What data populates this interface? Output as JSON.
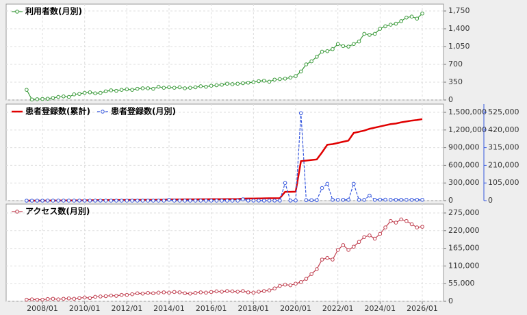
{
  "chart_data": [
    {
      "type": "line",
      "legend": "upper left",
      "grid": true,
      "series": [
        {
          "name": "利用者数(月別)",
          "color": "#3a9a3a",
          "marker": "circle",
          "dash": false,
          "values": [
            200,
            10,
            15,
            20,
            25,
            40,
            60,
            70,
            60,
            110,
            120,
            140,
            150,
            130,
            140,
            170,
            190,
            180,
            200,
            210,
            200,
            220,
            230,
            230,
            220,
            260,
            240,
            250,
            240,
            250,
            230,
            240,
            250,
            270,
            260,
            280,
            290,
            300,
            320,
            310,
            320,
            330,
            340,
            350,
            370,
            380,
            360,
            400,
            410,
            420,
            440,
            470,
            560,
            700,
            760,
            850,
            950,
            960,
            1000,
            1100,
            1060,
            1050,
            1100,
            1150,
            1300,
            1280,
            1300,
            1400,
            1450,
            1480,
            1500,
            1550,
            1620,
            1640,
            1600,
            1700
          ]
        }
      ],
      "ylim": [
        0,
        1885
      ],
      "yticks": [
        0,
        350,
        700,
        {
          "value": 1050,
          "label": "1,050"
        },
        {
          "value": 1400,
          "label": "1,400"
        },
        {
          "value": 1750,
          "label": "1,750"
        }
      ],
      "tick_color": "#3a9a3a"
    },
    {
      "type": "line",
      "legend": "upper left",
      "grid": true,
      "series": [
        {
          "name": "患者登録数(累計)",
          "color": "#e00000",
          "marker": "none",
          "dash": false,
          "values": [
            0,
            0,
            0,
            0,
            1000,
            1500,
            2000,
            2500,
            3000,
            3500,
            4000,
            5000,
            6000,
            7000,
            8000,
            9000,
            9500,
            10000,
            10500,
            11000,
            11500,
            12000,
            12500,
            13000,
            13500,
            14000,
            14500,
            20000,
            20500,
            21000,
            21500,
            22000,
            22500,
            23000,
            23500,
            24000,
            24500,
            25000,
            25500,
            26000,
            26500,
            35000,
            36000,
            37000,
            38000,
            39000,
            40000,
            41000,
            42000,
            150000,
            150000,
            152000,
            670000,
            680000,
            690000,
            700000,
            820000,
            950000,
            960000,
            980000,
            1000000,
            1020000,
            1150000,
            1170000,
            1190000,
            1220000,
            1240000,
            1260000,
            1280000,
            1300000,
            1310000,
            1330000,
            1345000,
            1360000,
            1370000,
            1385000
          ]
        },
        {
          "name": "患者登録数(月別)",
          "color": "#3355dd",
          "marker": "circle",
          "dash": true,
          "axis": "y2",
          "values": [
            0,
            0,
            0,
            0,
            300,
            200,
            200,
            200,
            200,
            200,
            300,
            300,
            300,
            300,
            300,
            200,
            200,
            200,
            200,
            200,
            200,
            200,
            200,
            200,
            200,
            200,
            200,
            5000,
            200,
            200,
            200,
            200,
            200,
            200,
            200,
            200,
            200,
            200,
            200,
            200,
            200,
            8000,
            500,
            500,
            500,
            500,
            500,
            500,
            500,
            105000,
            500,
            1000,
            520000,
            3000,
            3000,
            3000,
            75000,
            100000,
            5000,
            5000,
            5000,
            5000,
            100000,
            5000,
            5000,
            30000,
            5000,
            6000,
            6000,
            5000,
            5000,
            5000,
            5000,
            5000,
            5000,
            5000
          ]
        }
      ],
      "ylim": [
        0,
        1640000
      ],
      "yticks": [
        0,
        {
          "value": 300000,
          "label": "300,000"
        },
        {
          "value": 600000,
          "label": "600,000"
        },
        {
          "value": 900000,
          "label": "900,000"
        },
        {
          "value": 1200000,
          "label": "1,200,000"
        },
        {
          "value": 1500000,
          "label": "1,500,000"
        }
      ],
      "tick_color": "#e00000",
      "y2lim": [
        0,
        574000
      ],
      "y2ticks": [
        0,
        {
          "value": 105000,
          "label": "105,000"
        },
        {
          "value": 210000,
          "label": "210,000"
        },
        {
          "value": 315000,
          "label": "315,000"
        },
        {
          "value": 420000,
          "label": "420,000"
        },
        {
          "value": 525000,
          "label": "525,000"
        }
      ],
      "y2tick_color": "#3355dd"
    },
    {
      "type": "line",
      "legend": "upper left",
      "grid": true,
      "x": [
        "2007/04",
        "2007/07",
        "2007/10",
        "2008/01",
        "2008/04",
        "2008/07",
        "2008/10",
        "2009/01",
        "2009/04",
        "2009/07",
        "2009/10",
        "2010/01",
        "2010/04",
        "2010/07",
        "2010/10",
        "2011/01",
        "2011/04",
        "2011/07",
        "2011/10",
        "2012/01",
        "2012/04",
        "2012/07",
        "2012/10",
        "2013/01",
        "2013/04",
        "2013/07",
        "2013/10",
        "2014/01",
        "2014/04",
        "2014/07",
        "2014/10",
        "2015/01",
        "2015/04",
        "2015/07",
        "2015/10",
        "2016/01",
        "2016/04",
        "2016/07",
        "2016/10",
        "2017/01",
        "2017/04",
        "2017/07",
        "2017/10",
        "2018/01",
        "2018/04",
        "2018/07",
        "2018/10",
        "2019/01",
        "2019/04",
        "2019/07",
        "2019/10",
        "2020/01",
        "2020/04",
        "2020/07",
        "2020/10",
        "2021/01",
        "2021/04",
        "2021/07",
        "2021/10",
        "2022/01",
        "2022/04",
        "2022/07",
        "2022/10",
        "2023/01",
        "2023/04",
        "2023/07",
        "2023/10",
        "2024/01",
        "2024/04",
        "2024/07",
        "2024/10",
        "2025/01",
        "2025/04",
        "2025/07",
        "2025/10",
        "2026/01"
      ],
      "xticks": [
        "2008/01",
        "2010/01",
        "2012/01",
        "2014/01",
        "2016/01",
        "2018/01",
        "2020/01",
        "2022/01",
        "2024/01",
        "2026/01"
      ],
      "series": [
        {
          "name": "アクセス数(月別)",
          "color": "#c04050",
          "marker": "circle",
          "dash": false,
          "values": [
            5000,
            6000,
            5000,
            5000,
            7000,
            8000,
            6000,
            8000,
            9000,
            8000,
            10000,
            12000,
            10000,
            14000,
            15000,
            16000,
            18000,
            17000,
            20000,
            20000,
            22000,
            25000,
            24000,
            26000,
            25000,
            27000,
            28000,
            27000,
            29000,
            28000,
            25000,
            24000,
            26000,
            28000,
            27000,
            29000,
            31000,
            30000,
            32000,
            31000,
            30000,
            32000,
            28000,
            27000,
            30000,
            32000,
            34000,
            40000,
            48000,
            52000,
            50000,
            55000,
            60000,
            70000,
            85000,
            100000,
            130000,
            135000,
            130000,
            160000,
            175000,
            160000,
            170000,
            185000,
            200000,
            205000,
            195000,
            210000,
            230000,
            250000,
            245000,
            255000,
            250000,
            240000,
            230000,
            232000
          ]
        }
      ],
      "ylim": [
        0,
        302700
      ],
      "yticks": [
        0,
        {
          "value": 55000,
          "label": "55,000"
        },
        {
          "value": 110000,
          "label": "110,000"
        },
        {
          "value": 165000,
          "label": "165,000"
        },
        {
          "value": 220000,
          "label": "220,000"
        },
        {
          "value": 275000,
          "label": "275,000"
        }
      ],
      "tick_color": "#c04050"
    }
  ]
}
